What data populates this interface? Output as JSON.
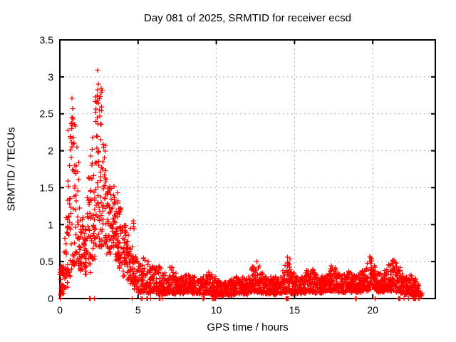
{
  "chart_data": {
    "type": "scatter",
    "title": "Day 081 of 2025, SRMTID for receiver ecsd",
    "xlabel": "GPS time / hours",
    "ylabel": "SRMTID / TECUs",
    "xlim": [
      0,
      24
    ],
    "ylim": [
      0,
      3.5
    ],
    "xticks": [
      0,
      5,
      10,
      15,
      20
    ],
    "yticks": [
      0,
      0.5,
      1,
      1.5,
      2,
      2.5,
      3,
      3.5
    ],
    "grid": true,
    "legend": "none",
    "marker": "plus",
    "marker_color": "#ff0000",
    "grid_color": "#a9a9a9",
    "axis_color": "#000000",
    "background_color": "#ffffff",
    "seed": 12345,
    "bands_format": [
      "t_start_hr",
      "t_end_hr",
      "n_points",
      "y_min",
      "y_max",
      "skew_exponent"
    ],
    "bands": [
      [
        0.0,
        0.25,
        40,
        0.05,
        0.45,
        1.0
      ],
      [
        0.25,
        0.5,
        30,
        0.15,
        1.15,
        1.5
      ],
      [
        0.5,
        0.75,
        32,
        0.3,
        2.45,
        1.8
      ],
      [
        0.75,
        1.0,
        34,
        0.45,
        2.6,
        1.8
      ],
      [
        1.0,
        1.25,
        30,
        0.45,
        2.05,
        1.8
      ],
      [
        1.25,
        1.5,
        30,
        0.35,
        1.3,
        1.4
      ],
      [
        1.5,
        1.75,
        30,
        0.3,
        0.95,
        1.2
      ],
      [
        1.75,
        2.0,
        30,
        0.35,
        1.65,
        1.5
      ],
      [
        2.0,
        2.25,
        30,
        0.5,
        2.1,
        1.6
      ],
      [
        2.25,
        2.5,
        34,
        0.7,
        3.0,
        1.7
      ],
      [
        2.5,
        2.75,
        34,
        0.7,
        2.85,
        1.7
      ],
      [
        2.75,
        3.0,
        30,
        0.65,
        2.1,
        1.5
      ],
      [
        3.0,
        3.25,
        30,
        0.6,
        1.55,
        1.2
      ],
      [
        3.25,
        3.5,
        32,
        0.65,
        1.5,
        1.1
      ],
      [
        3.5,
        3.75,
        32,
        0.5,
        1.45,
        1.2
      ],
      [
        3.75,
        4.0,
        30,
        0.4,
        1.25,
        1.2
      ],
      [
        4.0,
        4.25,
        30,
        0.3,
        1.0,
        1.2
      ],
      [
        4.25,
        4.5,
        30,
        0.25,
        0.9,
        1.3
      ],
      [
        4.5,
        4.75,
        30,
        0.2,
        1.05,
        1.5
      ],
      [
        4.75,
        5.0,
        30,
        0.12,
        0.6,
        1.3
      ],
      [
        5.0,
        5.25,
        30,
        0.08,
        0.5,
        1.6
      ],
      [
        5.25,
        5.5,
        30,
        0.08,
        0.55,
        1.6
      ],
      [
        5.5,
        5.75,
        30,
        0.07,
        0.5,
        1.5
      ],
      [
        5.75,
        6.0,
        30,
        0.06,
        0.45,
        1.6
      ],
      [
        6.0,
        6.25,
        30,
        0.06,
        0.5,
        1.7
      ],
      [
        6.25,
        6.5,
        30,
        0.06,
        0.45,
        1.7
      ],
      [
        6.5,
        6.75,
        30,
        0.06,
        0.35,
        1.5
      ],
      [
        6.75,
        7.0,
        30,
        0.06,
        0.3,
        1.4
      ],
      [
        7.0,
        7.25,
        30,
        0.07,
        0.45,
        1.7
      ],
      [
        7.25,
        7.5,
        30,
        0.06,
        0.35,
        1.5
      ],
      [
        7.5,
        7.75,
        30,
        0.06,
        0.3,
        1.4
      ],
      [
        7.75,
        8.0,
        30,
        0.06,
        0.3,
        1.4
      ],
      [
        8.0,
        8.25,
        30,
        0.08,
        0.35,
        1.4
      ],
      [
        8.25,
        8.5,
        30,
        0.08,
        0.3,
        1.3
      ],
      [
        8.5,
        8.75,
        30,
        0.06,
        0.3,
        1.3
      ],
      [
        8.75,
        9.0,
        30,
        0.06,
        0.28,
        1.3
      ],
      [
        9.0,
        9.25,
        30,
        0.05,
        0.3,
        1.3
      ],
      [
        9.25,
        9.5,
        30,
        0.06,
        0.33,
        1.4
      ],
      [
        9.5,
        9.75,
        30,
        0.05,
        0.38,
        1.5
      ],
      [
        9.75,
        10.0,
        28,
        0.03,
        0.3,
        1.4
      ],
      [
        10.0,
        10.25,
        30,
        0.03,
        0.25,
        1.3
      ],
      [
        10.25,
        10.5,
        30,
        0.03,
        0.22,
        1.2
      ],
      [
        10.5,
        10.75,
        30,
        0.04,
        0.22,
        1.2
      ],
      [
        10.75,
        11.0,
        30,
        0.04,
        0.25,
        1.2
      ],
      [
        11.0,
        11.25,
        30,
        0.05,
        0.28,
        1.3
      ],
      [
        11.25,
        11.5,
        30,
        0.06,
        0.3,
        1.3
      ],
      [
        11.5,
        11.75,
        30,
        0.06,
        0.3,
        1.3
      ],
      [
        11.75,
        12.0,
        30,
        0.05,
        0.28,
        1.3
      ],
      [
        12.0,
        12.25,
        30,
        0.05,
        0.3,
        1.3
      ],
      [
        12.25,
        12.5,
        30,
        0.08,
        0.45,
        1.6
      ],
      [
        12.5,
        12.75,
        30,
        0.08,
        0.5,
        1.7
      ],
      [
        12.75,
        13.0,
        30,
        0.06,
        0.35,
        1.5
      ],
      [
        13.0,
        13.25,
        30,
        0.06,
        0.3,
        1.3
      ],
      [
        13.25,
        13.5,
        30,
        0.06,
        0.3,
        1.3
      ],
      [
        13.5,
        13.75,
        30,
        0.05,
        0.28,
        1.3
      ],
      [
        13.75,
        14.0,
        30,
        0.05,
        0.3,
        1.3
      ],
      [
        14.0,
        14.25,
        30,
        0.06,
        0.3,
        1.3
      ],
      [
        14.25,
        14.5,
        30,
        0.08,
        0.45,
        1.6
      ],
      [
        14.5,
        14.75,
        30,
        0.08,
        0.55,
        1.7
      ],
      [
        14.75,
        15.0,
        30,
        0.06,
        0.35,
        1.4
      ],
      [
        15.0,
        15.25,
        30,
        0.06,
        0.3,
        1.3
      ],
      [
        15.25,
        15.5,
        30,
        0.06,
        0.3,
        1.3
      ],
      [
        15.5,
        15.75,
        30,
        0.07,
        0.35,
        1.4
      ],
      [
        15.75,
        16.0,
        30,
        0.08,
        0.38,
        1.4
      ],
      [
        16.0,
        16.25,
        30,
        0.08,
        0.4,
        1.4
      ],
      [
        16.25,
        16.5,
        30,
        0.07,
        0.35,
        1.4
      ],
      [
        16.5,
        16.75,
        30,
        0.07,
        0.3,
        1.3
      ],
      [
        16.75,
        17.0,
        30,
        0.08,
        0.32,
        1.3
      ],
      [
        17.0,
        17.25,
        30,
        0.08,
        0.35,
        1.3
      ],
      [
        17.25,
        17.5,
        30,
        0.1,
        0.45,
        1.5
      ],
      [
        17.5,
        17.75,
        30,
        0.1,
        0.42,
        1.4
      ],
      [
        17.75,
        18.0,
        30,
        0.08,
        0.35,
        1.3
      ],
      [
        18.0,
        18.25,
        30,
        0.08,
        0.35,
        1.3
      ],
      [
        18.25,
        18.5,
        30,
        0.1,
        0.38,
        1.3
      ],
      [
        18.5,
        18.75,
        30,
        0.08,
        0.35,
        1.3
      ],
      [
        18.75,
        19.0,
        30,
        0.08,
        0.32,
        1.3
      ],
      [
        19.0,
        19.25,
        30,
        0.08,
        0.35,
        1.3
      ],
      [
        19.25,
        19.5,
        30,
        0.1,
        0.38,
        1.4
      ],
      [
        19.5,
        19.75,
        30,
        0.1,
        0.5,
        1.5
      ],
      [
        19.75,
        20.0,
        30,
        0.12,
        0.58,
        1.5
      ],
      [
        20.0,
        20.25,
        30,
        0.1,
        0.45,
        1.5
      ],
      [
        20.25,
        20.5,
        30,
        0.08,
        0.35,
        1.4
      ],
      [
        20.5,
        20.75,
        30,
        0.08,
        0.3,
        1.3
      ],
      [
        20.75,
        21.0,
        30,
        0.1,
        0.4,
        1.4
      ],
      [
        21.0,
        21.25,
        30,
        0.1,
        0.5,
        1.5
      ],
      [
        21.25,
        21.5,
        30,
        0.1,
        0.52,
        1.5
      ],
      [
        21.5,
        21.75,
        30,
        0.08,
        0.45,
        1.5
      ],
      [
        21.75,
        22.0,
        30,
        0.06,
        0.35,
        1.4
      ],
      [
        22.0,
        22.25,
        30,
        0.05,
        0.3,
        1.4
      ],
      [
        22.25,
        22.5,
        30,
        0.04,
        0.32,
        1.4
      ],
      [
        22.5,
        22.75,
        30,
        0.04,
        0.28,
        1.4
      ],
      [
        22.75,
        23.0,
        28,
        0.02,
        0.2,
        1.3
      ],
      [
        23.0,
        23.15,
        8,
        0.01,
        0.12,
        1.2
      ]
    ],
    "highlights": [
      [
        0.78,
        2.71
      ],
      [
        0.82,
        2.57
      ],
      [
        0.8,
        2.45
      ],
      [
        0.84,
        2.43
      ],
      [
        0.76,
        2.3
      ],
      [
        0.86,
        2.18
      ],
      [
        0.9,
        2.1
      ],
      [
        2.42,
        3.09
      ],
      [
        2.45,
        2.9
      ],
      [
        2.4,
        2.75
      ],
      [
        2.47,
        2.64
      ],
      [
        2.52,
        2.55
      ],
      [
        2.56,
        2.47
      ],
      [
        2.38,
        2.45
      ],
      [
        2.6,
        2.36
      ],
      [
        2.35,
        2.2
      ],
      [
        2.62,
        2.15
      ],
      [
        2.1,
        2.18
      ],
      [
        2.07,
        2.02
      ],
      [
        1.97,
        1.93
      ],
      [
        3.45,
        1.52
      ],
      [
        4.7,
        1.05
      ],
      [
        5.35,
        0.55
      ],
      [
        14.55,
        0.56
      ],
      [
        19.82,
        0.57
      ],
      [
        12.6,
        0.5
      ],
      [
        21.3,
        0.51
      ]
    ],
    "zero_value_times": [
      0.02,
      1.9,
      1.95,
      2.2,
      4.62,
      5.2,
      5.25,
      5.55,
      5.6,
      5.8,
      6.35,
      6.4,
      6.55,
      9.15,
      9.2,
      9.75,
      9.8,
      9.85,
      9.9,
      9.95,
      14.45,
      14.5,
      14.55,
      14.6,
      18.9,
      18.95,
      20.15,
      21.65,
      21.7,
      21.75,
      22.0,
      22.3,
      22.6,
      22.65,
      22.7,
      22.75,
      22.9,
      23.0
    ]
  }
}
